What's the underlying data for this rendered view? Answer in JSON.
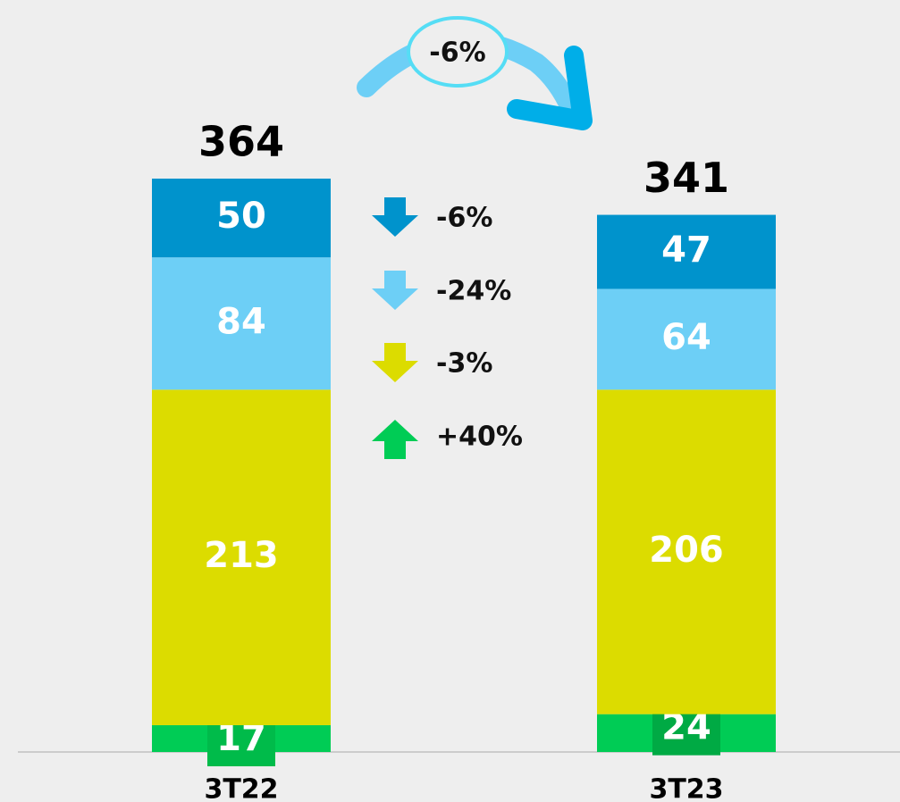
{
  "chart_data": {
    "type": "stacked-bar",
    "categories": [
      "3T22",
      "3T23"
    ],
    "series": [
      {
        "color": "#00cc55",
        "values": [
          17,
          24
        ],
        "change": "+40%"
      },
      {
        "color": "#dcdc00",
        "values": [
          213,
          206
        ],
        "change": "-3%"
      },
      {
        "color": "#6dcff6",
        "values": [
          84,
          64
        ],
        "change": "-24%"
      },
      {
        "color": "#0093cc",
        "values": [
          50,
          47
        ],
        "change": "-6%"
      }
    ],
    "totals": [
      364,
      341
    ],
    "total_change": "-6%",
    "ylim": [
      0,
      364
    ]
  }
}
